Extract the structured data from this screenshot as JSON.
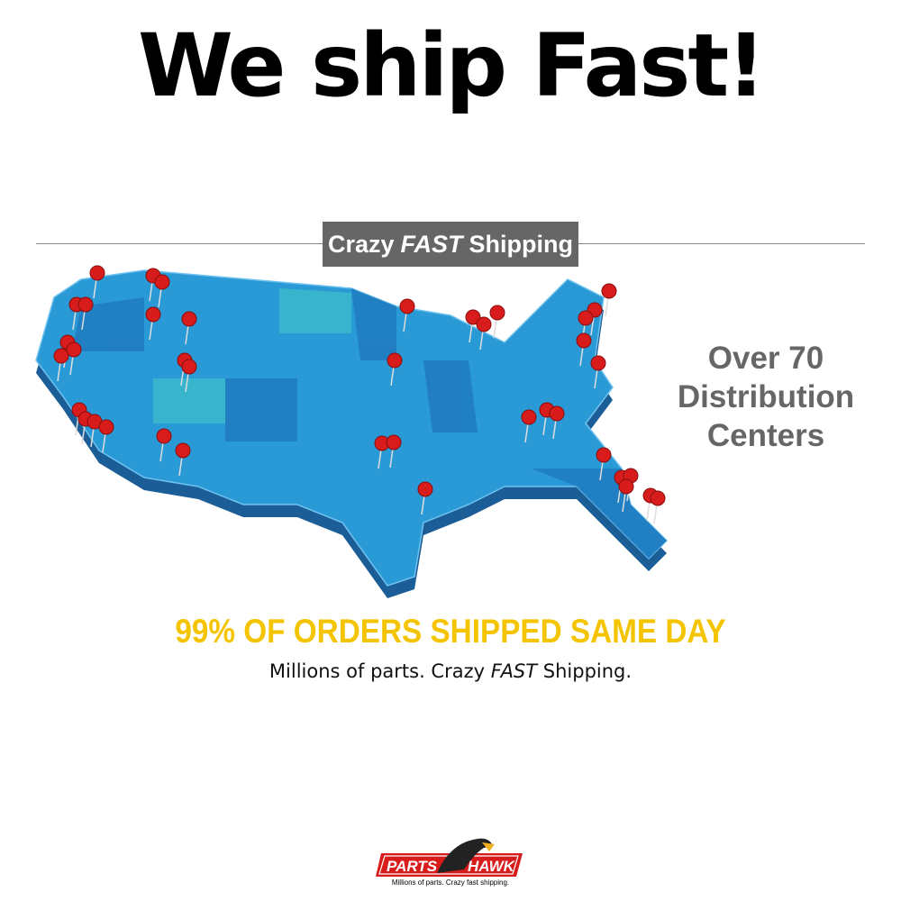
{
  "headline": "We ship Fast!",
  "banner": {
    "part1": "Crazy",
    "part2": "FAST",
    "part3": "Shipping"
  },
  "centers": {
    "line1": "Over 70",
    "line2": "Distribution",
    "line3": "Centers"
  },
  "sameday": "99% OF ORDERS SHIPPED SAME DAY",
  "tagline": {
    "part1": "Millions of parts. Crazy ",
    "part2": "FAST",
    "part3": " Shipping."
  },
  "logo": {
    "word1": "PARTS",
    "word2": "HAWK",
    "tagline": "Millions of parts. Crazy fast shipping."
  },
  "colors": {
    "map_blue": "#2a9ad6",
    "pin_red": "#d81c1c",
    "accent_yellow": "#f5c400",
    "banner_gray": "#666666"
  }
}
